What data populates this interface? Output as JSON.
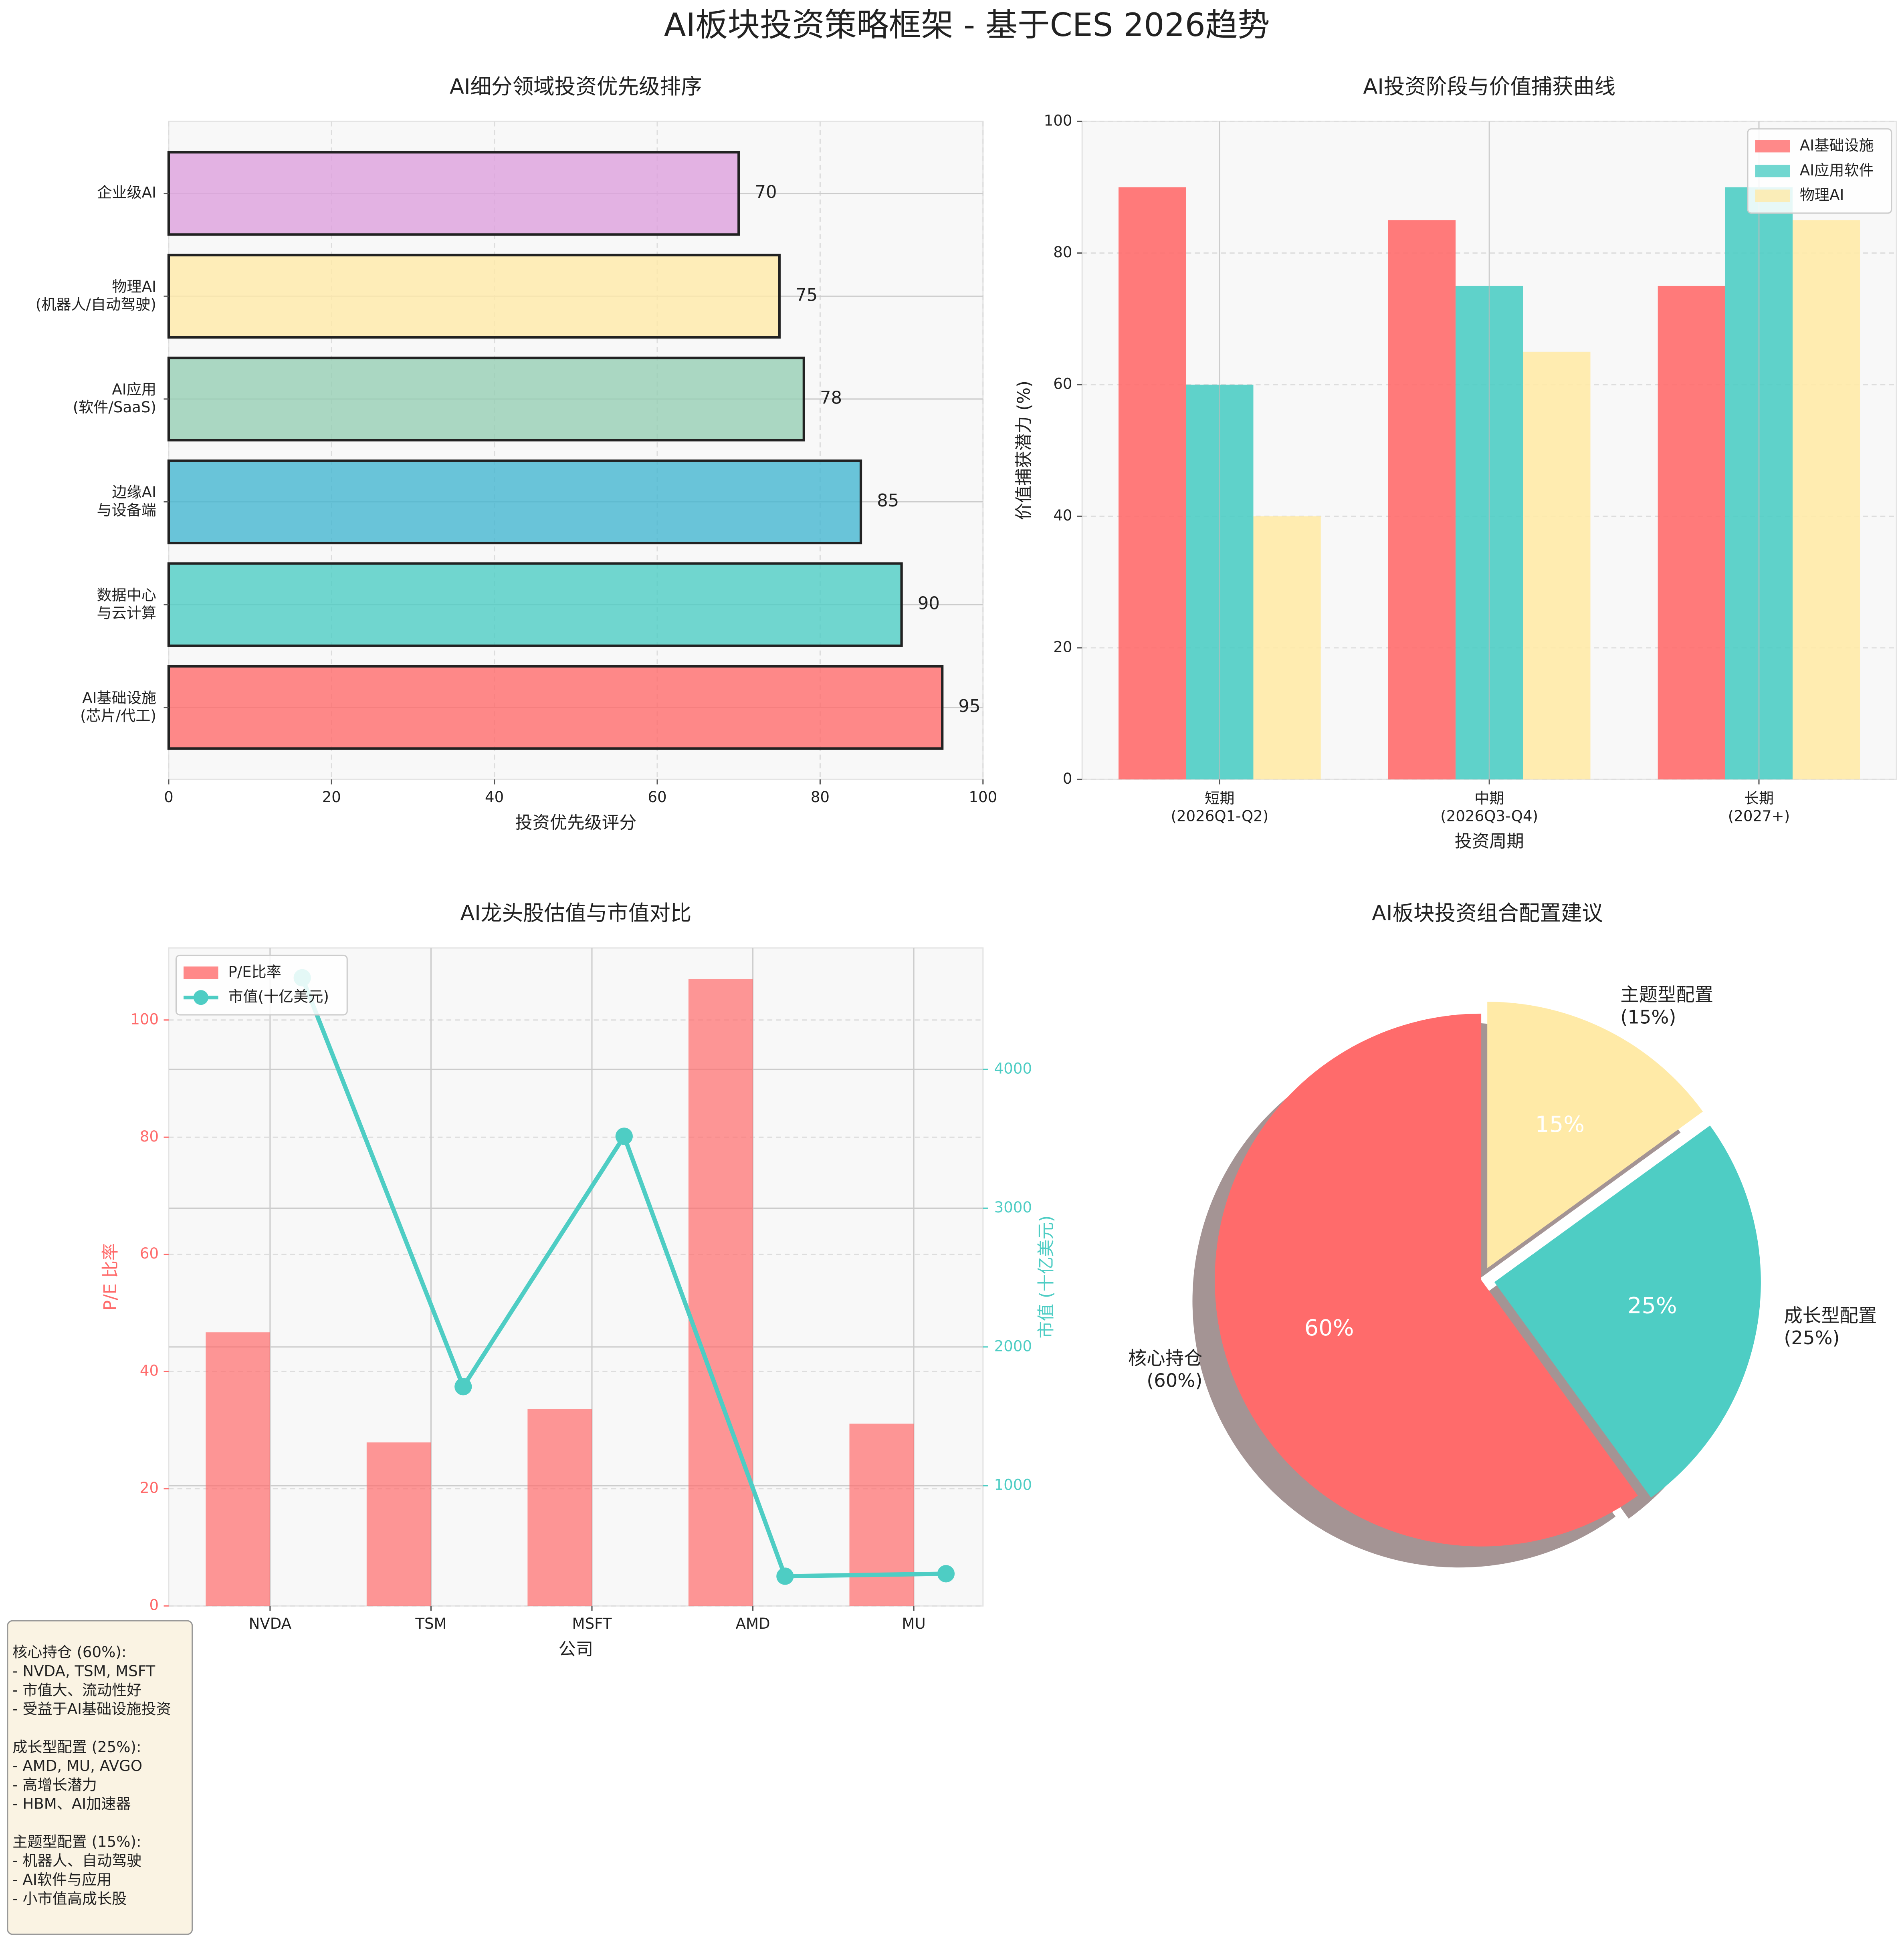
{
  "title": "AI板块投资策略框架 - 基于CES 2026趋势",
  "chart_data": [
    {
      "type": "barh",
      "title": "AI细分领域投资优先级排序",
      "xlabel": "投资优先级评分",
      "categories": [
        "AI基础设施\n(芯片/代工)",
        "数据中心\n与云计算",
        "边缘AI\n与设备端",
        "AI应用\n(软件/SaaS)",
        "物理AI\n(机器人/自动驾驶)",
        "企业级AI"
      ],
      "values": [
        95,
        90,
        85,
        78,
        75,
        70
      ],
      "colors": [
        "#FF6B6B",
        "#4ECDC4",
        "#45B7D1",
        "#96CEB4",
        "#FFEAA7",
        "#DDA0DD"
      ],
      "xlim": [
        0,
        100
      ],
      "xticks": [
        0,
        20,
        40,
        60,
        80,
        100
      ],
      "grid": true
    },
    {
      "type": "bar",
      "title": "AI投资阶段与价值捕获曲线",
      "xlabel": "投资周期",
      "ylabel": "价值捕获潜力 (%)",
      "categories": [
        "短期\n(2026Q1-Q2)",
        "中期\n(2026Q3-Q4)",
        "长期\n(2027+)"
      ],
      "series": [
        {
          "name": "AI基础设施",
          "color": "#FF6B6B",
          "values": [
            90,
            85,
            75
          ]
        },
        {
          "name": "AI应用软件",
          "color": "#4ECDC4",
          "values": [
            60,
            75,
            90
          ]
        },
        {
          "name": "物理AI",
          "color": "#FFEAA7",
          "values": [
            40,
            65,
            85
          ]
        }
      ],
      "ylim": [
        0,
        100
      ],
      "yticks": [
        0,
        20,
        40,
        60,
        80,
        100
      ],
      "legend": "upper right",
      "grid": true
    },
    {
      "type": "combo",
      "title": "AI龙头股估值与市值对比",
      "xlabel": "公司",
      "ylabel": "P/E 比率",
      "y2label": "市值 (十亿美元)",
      "categories": [
        "NVDA",
        "TSM",
        "MSFT",
        "AMD",
        "MU"
      ],
      "series": [
        {
          "name": "P/E比率",
          "type": "bar",
          "color": "#FF6B6B",
          "values": [
            46.7,
            27.9,
            33.6,
            107,
            31.1
          ]
        },
        {
          "name": "市值(十亿美元)",
          "type": "line",
          "axis": "y2",
          "color": "#4ECDC4",
          "values": [
            4660,
            1714,
            3518,
            348,
            366
          ]
        }
      ],
      "ylim": [
        0,
        112.3
      ],
      "yticks": [
        0,
        20,
        40,
        60,
        80,
        100
      ],
      "y2lim": [
        134,
        4875
      ],
      "y2ticks": [
        1000,
        2000,
        3000,
        4000
      ],
      "legend": "upper left",
      "grid": true
    },
    {
      "type": "pie",
      "title": "AI板块投资组合配置建议",
      "categories": [
        "核心持仓\n(60%)",
        "成长型配置\n(25%)",
        "主题型配置\n(15%)"
      ],
      "values": [
        60,
        25,
        15
      ],
      "value_labels": [
        "60%",
        "25%",
        "15%"
      ],
      "colors": [
        "#FF6B6B",
        "#4ECDC4",
        "#FFEAA7"
      ],
      "explode": [
        0,
        0.05,
        0.05
      ],
      "startangle": 90,
      "shadow": true
    }
  ],
  "text_box": [
    [
      "核心持仓 (60%):",
      "- NVDA, TSM, MSFT",
      "- 市值大、流动性好",
      "- 受益于AI基础设施投资"
    ],
    [
      "成长型配置 (25%):",
      "- AMD, MU, AVGO",
      "- 高增长潜力",
      "- HBM、AI加速器"
    ],
    [
      "主题型配置 (15%):",
      "- 机器人、自动驾驶",
      "- AI软件与应用",
      "- 小市值高成长股"
    ]
  ]
}
